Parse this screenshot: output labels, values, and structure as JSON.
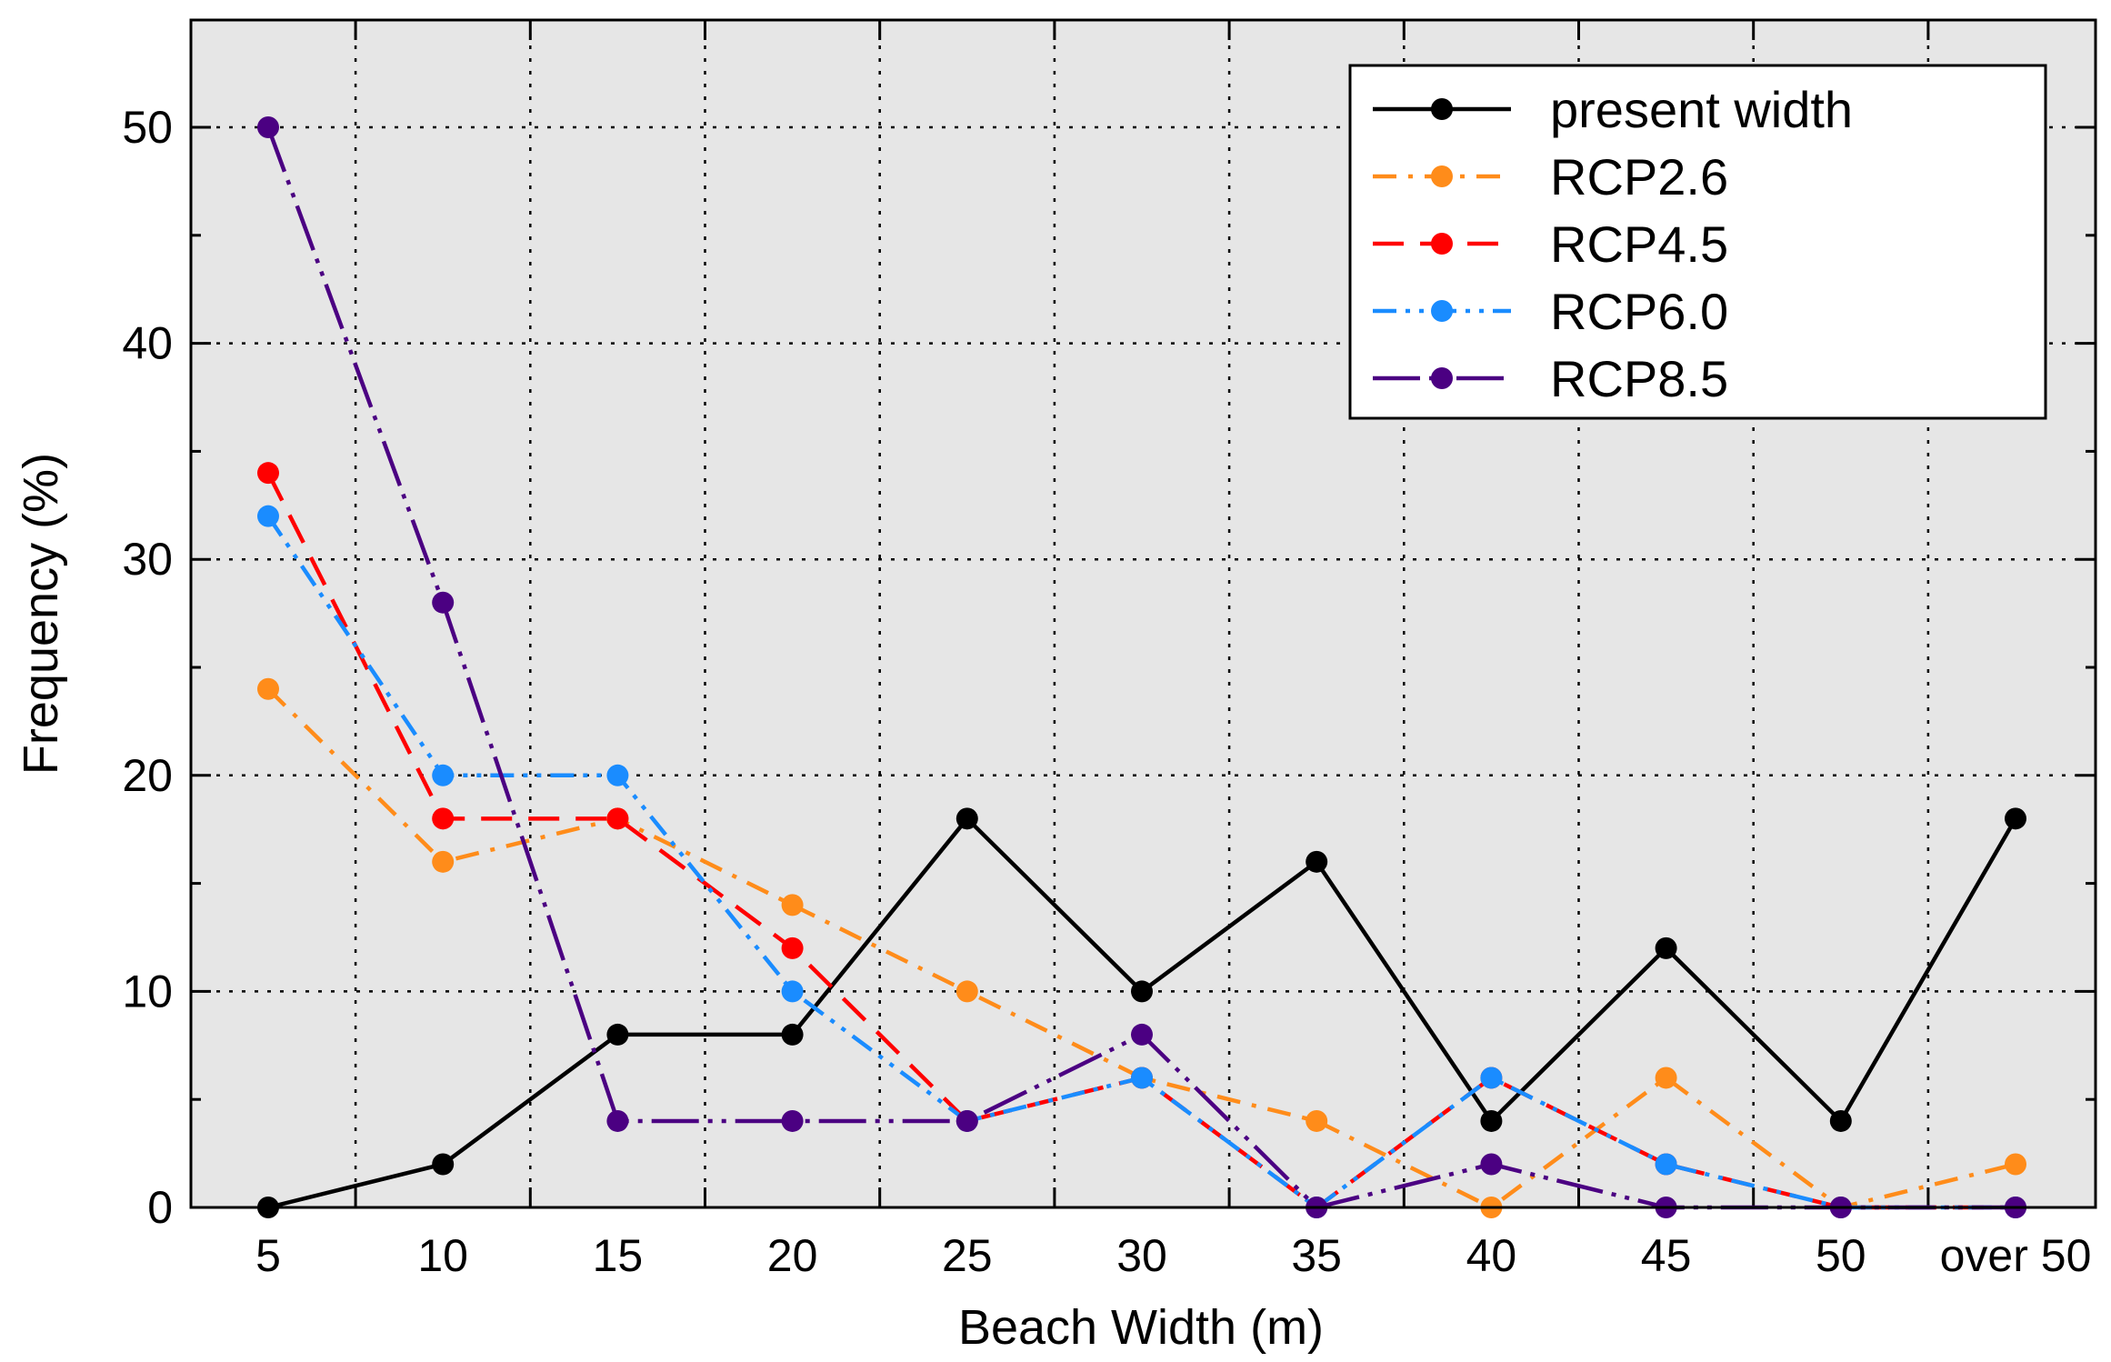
{
  "chart_data": {
    "type": "line",
    "title": "",
    "xlabel": "Beach Width (m)",
    "ylabel": "Frequency (%)",
    "ylim": [
      0,
      55
    ],
    "yticks": [
      0,
      10,
      20,
      30,
      40,
      50
    ],
    "grid": true,
    "legend_position": "top-right",
    "background_color": "#e6e6e6",
    "categories": [
      "5",
      "10",
      "15",
      "20",
      "25",
      "30",
      "35",
      "40",
      "45",
      "50",
      "over 50"
    ],
    "series": [
      {
        "name": "present width",
        "color": "#000000",
        "dash": "solid",
        "values": [
          0,
          2,
          8,
          8,
          18,
          10,
          16,
          4,
          12,
          4,
          18
        ]
      },
      {
        "name": "RCP2.6",
        "color": "#ff8c1a",
        "dash": "dash",
        "values": [
          24,
          16,
          18,
          14,
          10,
          6,
          4,
          0,
          6,
          0,
          2
        ]
      },
      {
        "name": "RCP4.5",
        "color": "#ff0000",
        "dash": "longdash",
        "values": [
          34,
          18,
          18,
          12,
          4,
          6,
          0,
          6,
          2,
          0,
          0
        ]
      },
      {
        "name": "RCP6.0",
        "color": "#1a8cff",
        "dash": "dashdotdot",
        "values": [
          32,
          20,
          20,
          10,
          4,
          6,
          0,
          6,
          2,
          0,
          0
        ]
      },
      {
        "name": "RCP8.5",
        "color": "#4b0082",
        "dash": "dashdotdot-long",
        "values": [
          50,
          28,
          4,
          4,
          4,
          8,
          0,
          2,
          0,
          0,
          0
        ]
      }
    ]
  }
}
